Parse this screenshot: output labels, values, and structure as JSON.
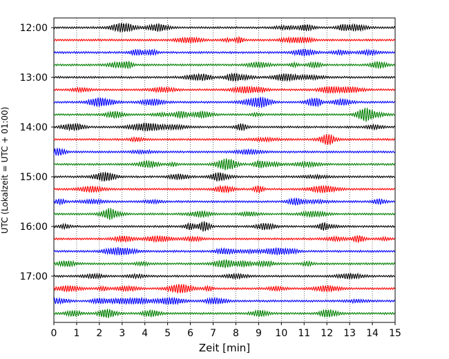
{
  "chart_data": {
    "type": "line",
    "xlabel": "Zeit  [min]",
    "ylabel": "UTC (Lokalzeit = UTC + 01:00)",
    "xlim": [
      0,
      15
    ],
    "x_ticks": [
      0,
      1,
      2,
      3,
      4,
      5,
      6,
      7,
      8,
      9,
      10,
      11,
      12,
      13,
      14,
      15
    ],
    "y_tick_labels": [
      "12:00",
      "13:00",
      "14:00",
      "15:00",
      "16:00",
      "17:00"
    ],
    "grid": "vertical dotted lines at each minute",
    "series_colors": [
      "#000000",
      "#ff0000",
      "#0000ff",
      "#008000"
    ],
    "rows": [
      "12:00",
      "12:15",
      "12:30",
      "12:45",
      "13:00",
      "13:15",
      "13:30",
      "13:45",
      "14:00",
      "14:15",
      "14:30",
      "14:45",
      "15:00",
      "15:15",
      "15:30",
      "15:45",
      "16:00",
      "16:15",
      "16:30",
      "16:45",
      "17:00",
      "17:15",
      "17:30",
      "17:45"
    ]
  }
}
